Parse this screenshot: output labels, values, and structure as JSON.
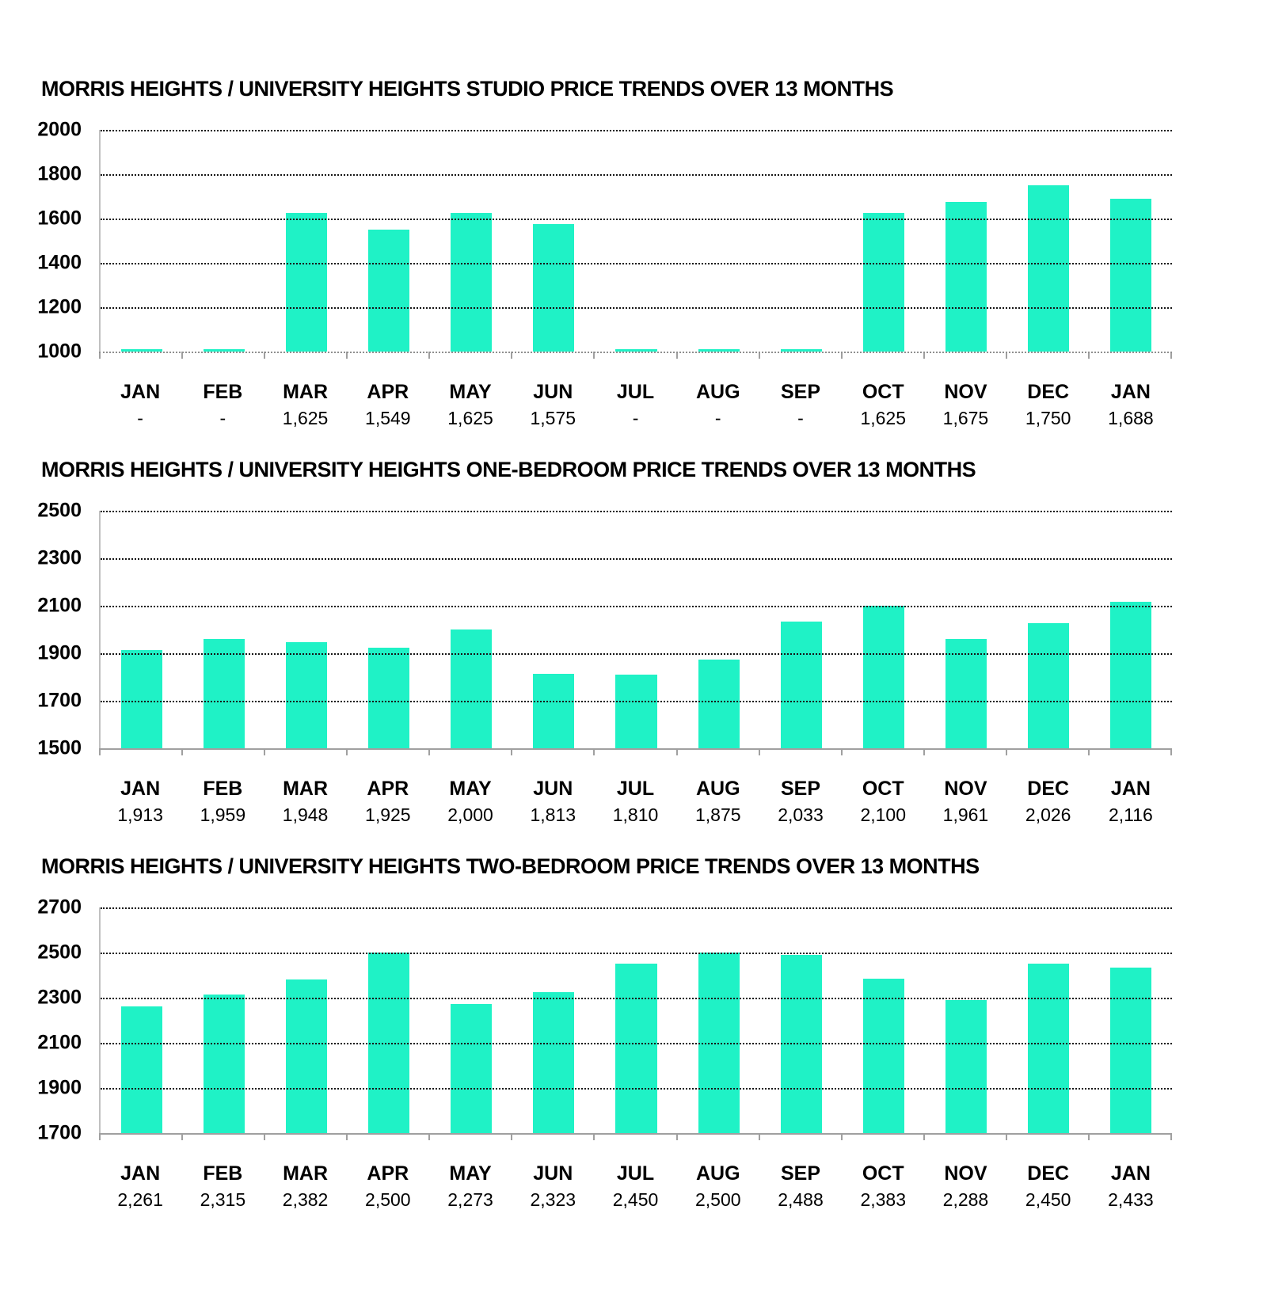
{
  "colors": {
    "bar": "#1FF2C6",
    "gridline": "#151515",
    "axis_line": "#A0A0A0",
    "text": "#000000"
  },
  "chart_data": [
    {
      "type": "bar",
      "title": "MORRIS HEIGHTS / UNIVERSITY HEIGHTS STUDIO PRICE TRENDS OVER 13 MONTHS",
      "categories": [
        "JAN",
        "FEB",
        "MAR",
        "APR",
        "MAY",
        "JUN",
        "JUL",
        "AUG",
        "SEP",
        "OCT",
        "NOV",
        "DEC",
        "JAN"
      ],
      "values": [
        null,
        null,
        1625,
        1549,
        1625,
        1575,
        null,
        null,
        null,
        1625,
        1675,
        1750,
        1688
      ],
      "value_labels": [
        "-",
        "-",
        "1,625",
        "1,549",
        "1,625",
        "1,575",
        "-",
        "-",
        "-",
        "1,625",
        "1,675",
        "1,750",
        "1,688"
      ],
      "ylim": [
        1000,
        2000
      ],
      "yticks": [
        2000,
        1800,
        1600,
        1400,
        1200,
        1000
      ],
      "grid": "dotted-horizontal",
      "legend": "none"
    },
    {
      "type": "bar",
      "title": "MORRIS HEIGHTS / UNIVERSITY HEIGHTS ONE-BEDROOM PRICE TRENDS OVER 13 MONTHS",
      "categories": [
        "JAN",
        "FEB",
        "MAR",
        "APR",
        "MAY",
        "JUN",
        "JUL",
        "AUG",
        "SEP",
        "OCT",
        "NOV",
        "DEC",
        "JAN"
      ],
      "values": [
        1913,
        1959,
        1948,
        1925,
        2000,
        1813,
        1810,
        1875,
        2033,
        2100,
        1961,
        2026,
        2116
      ],
      "value_labels": [
        "1,913",
        "1,959",
        "1,948",
        "1,925",
        "2,000",
        "1,813",
        "1,810",
        "1,875",
        "2,033",
        "2,100",
        "1,961",
        "2,026",
        "2,116"
      ],
      "ylim": [
        1500,
        2500
      ],
      "yticks": [
        2500,
        2300,
        2100,
        1900,
        1700,
        1500
      ],
      "grid": "dotted-horizontal",
      "legend": "none"
    },
    {
      "type": "bar",
      "title": "MORRIS HEIGHTS / UNIVERSITY HEIGHTS TWO-BEDROOM PRICE TRENDS OVER 13 MONTHS",
      "categories": [
        "JAN",
        "FEB",
        "MAR",
        "APR",
        "MAY",
        "JUN",
        "JUL",
        "AUG",
        "SEP",
        "OCT",
        "NOV",
        "DEC",
        "JAN"
      ],
      "values": [
        2261,
        2315,
        2382,
        2500,
        2273,
        2323,
        2450,
        2500,
        2488,
        2383,
        2288,
        2450,
        2433
      ],
      "value_labels": [
        "2,261",
        "2,315",
        "2,382",
        "2,500",
        "2,273",
        "2,323",
        "2,450",
        "2,500",
        "2,488",
        "2,383",
        "2,288",
        "2,450",
        "2,433"
      ],
      "ylim": [
        1700,
        2700
      ],
      "yticks": [
        2700,
        2500,
        2300,
        2100,
        1900,
        1700
      ],
      "grid": "dotted-horizontal",
      "legend": "none"
    }
  ]
}
